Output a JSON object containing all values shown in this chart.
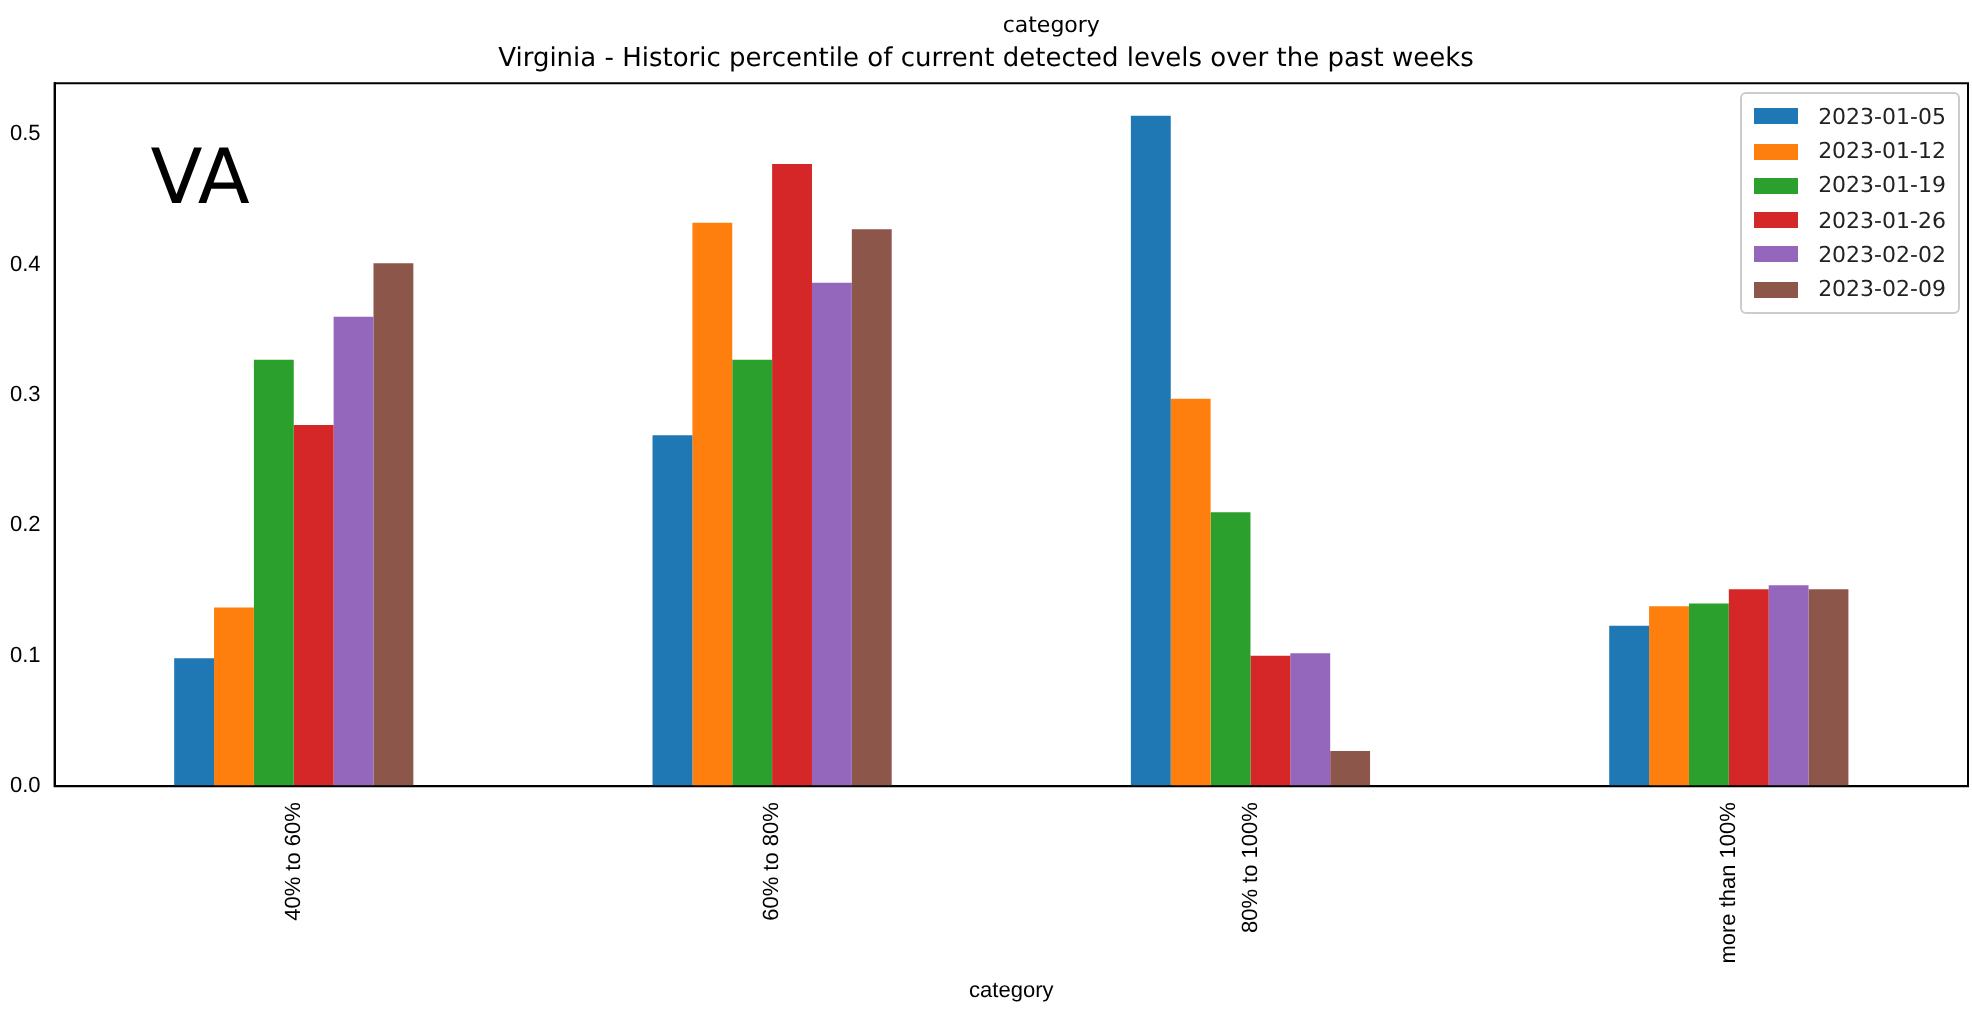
{
  "chart_data": {
    "type": "bar",
    "title": "Virginia - Historic percentile of current detected levels over the past weeks",
    "xlabel": "category",
    "categories": [
      "40% to 60%",
      "60% to 80%",
      "80% to 100%",
      "more than 100%"
    ],
    "series": [
      {
        "name": "2023-01-05",
        "color": "#1f77b4",
        "values": [
          0.098,
          0.269,
          0.514,
          0.123
        ]
      },
      {
        "name": "2023-01-12",
        "color": "#ff7f0e",
        "values": [
          0.137,
          0.432,
          0.297,
          0.138
        ]
      },
      {
        "name": "2023-01-19",
        "color": "#2ca02c",
        "values": [
          0.327,
          0.327,
          0.21,
          0.14
        ]
      },
      {
        "name": "2023-01-26",
        "color": "#d62728",
        "values": [
          0.277,
          0.477,
          0.1,
          0.151
        ]
      },
      {
        "name": "2023-02-02",
        "color": "#9467bd",
        "values": [
          0.36,
          0.386,
          0.102,
          0.154
        ]
      },
      {
        "name": "2023-02-09",
        "color": "#8c564b",
        "values": [
          0.401,
          0.427,
          0.027,
          0.151
        ]
      }
    ],
    "ylim": [
      0,
      0.539
    ],
    "yticks": [
      {
        "value": 0,
        "label": "0.0"
      },
      {
        "value": 0.1,
        "label": "0.1"
      },
      {
        "value": 0.2,
        "label": "0.2"
      },
      {
        "value": 0.3,
        "label": "0.3"
      },
      {
        "value": 0.4,
        "label": "0.4"
      },
      {
        "value": 0.5,
        "label": "0.5"
      }
    ],
    "annotations": [
      "category",
      "VA"
    ],
    "legend": "top right",
    "grid": false
  }
}
